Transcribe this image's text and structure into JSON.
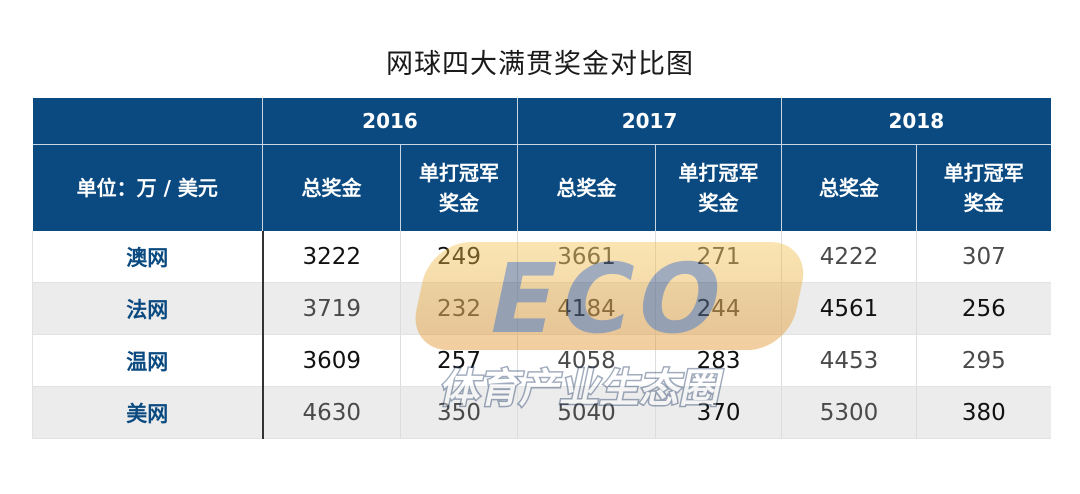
{
  "chart_data": {
    "type": "table",
    "title": "网球四大满贯奖金对比图",
    "unit_label": "单位：万 / 美元",
    "years": [
      "2016",
      "2017",
      "2018"
    ],
    "columns": [
      "总奖金",
      "单打冠军奖金"
    ],
    "column_line1": "单打冠军",
    "column_line2": "奖金",
    "rows": [
      {
        "label": "澳网",
        "values": [
          "3222",
          "249",
          "3661",
          "271",
          "4222",
          "307"
        ]
      },
      {
        "label": "法网",
        "values": [
          "3719",
          "232",
          "4184",
          "244",
          "4561",
          "256"
        ]
      },
      {
        "label": "温网",
        "values": [
          "3609",
          "257",
          "4058",
          "283",
          "4453",
          "295"
        ]
      },
      {
        "label": "美网",
        "values": [
          "4630",
          "350",
          "5040",
          "370",
          "5300",
          "380"
        ]
      }
    ]
  },
  "watermark": {
    "logo_text": "ECO",
    "tagline": "体育产业生态圈"
  }
}
